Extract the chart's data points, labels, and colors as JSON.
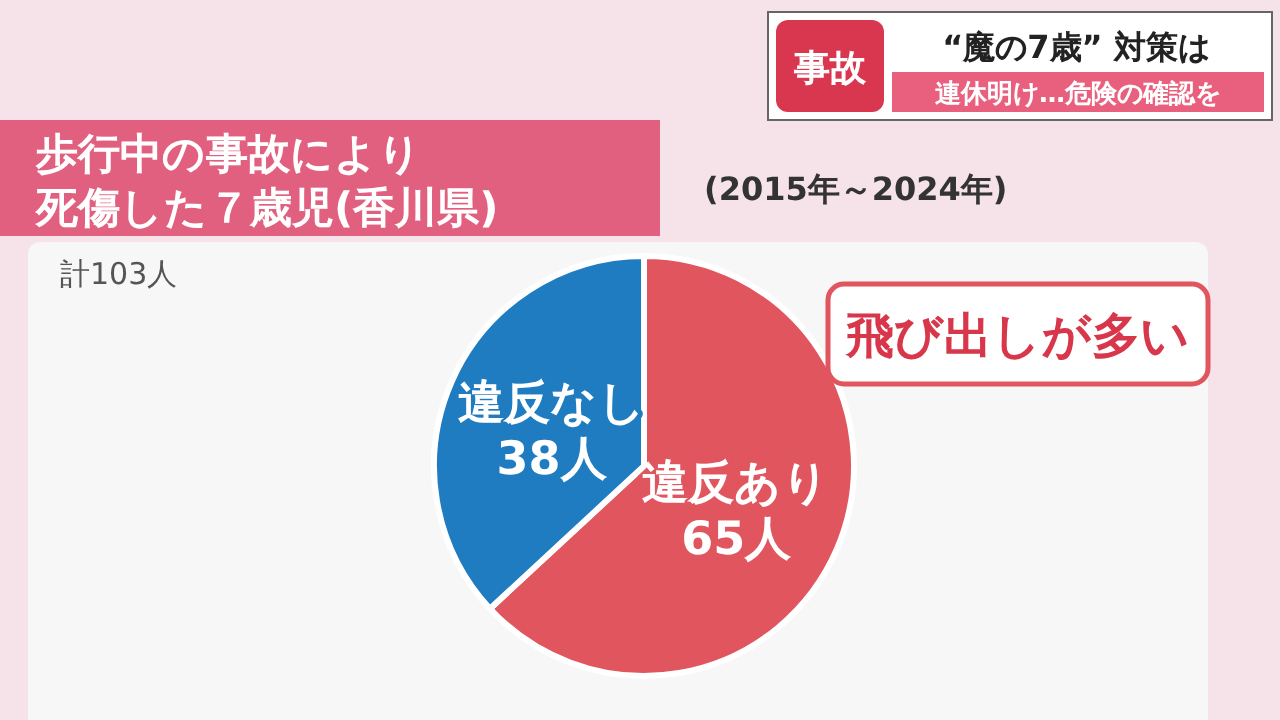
{
  "chart_data": {
    "type": "pie",
    "title": "歩行中の事故により死傷した７歳児(香川県)",
    "subtitle": "(2015年～2024年)",
    "annotations": [
      "計103人",
      "飛び出しが多い",
      "事故",
      "“魔の7歳” 対策は",
      "連休明け…危険の確認を"
    ],
    "categories": [
      "違反あり",
      "違反なし"
    ],
    "values": [
      65,
      38
    ],
    "colors": [
      "#e0555e",
      "#1f7cc0"
    ],
    "value_labels": [
      "65人",
      "38人"
    ]
  }
}
